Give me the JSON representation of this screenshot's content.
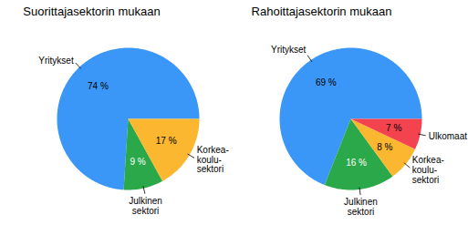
{
  "chart_data": [
    {
      "type": "pie",
      "title": "Suorittajasektorin mukaan",
      "categories": [
        "Yritykset",
        "Julkinen\nsektori",
        "Korkea-\nkoulu-\nsektori"
      ],
      "values": [
        74,
        9,
        17
      ],
      "value_labels": [
        "74 %",
        "9 %",
        "17 %"
      ],
      "colors": [
        "#3b97f7",
        "#2aa84a",
        "#fbb72f"
      ],
      "data_labels": true
    },
    {
      "type": "pie",
      "title": "Rahoittajasektorin mukaan",
      "categories": [
        "Yritykset",
        "Julkinen\nsektori",
        "Korkea-\nkoulu-\nsektori",
        "Ulkomaat"
      ],
      "values": [
        69,
        16,
        8,
        7
      ],
      "value_labels": [
        "69 %",
        "16 %",
        "8 %",
        "7 %"
      ],
      "colors": [
        "#3b97f7",
        "#2aa84a",
        "#fbb72f",
        "#f2434f"
      ],
      "data_labels": true
    }
  ]
}
